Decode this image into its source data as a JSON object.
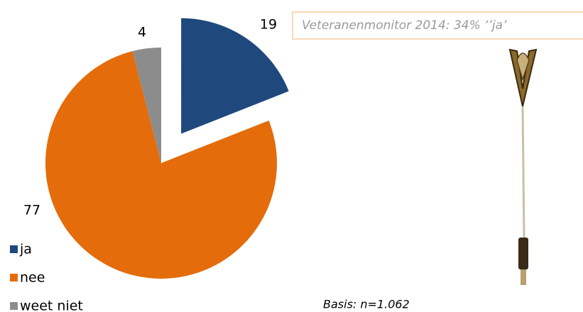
{
  "chart_data": {
    "type": "pie",
    "categories": [
      "ja",
      "nee",
      "weet niet"
    ],
    "values": [
      19,
      77,
      4
    ],
    "colors": [
      "#1f497d",
      "#e46c0a",
      "#8c8c8c"
    ],
    "exploded": [
      true,
      false,
      false
    ],
    "legend": "bottom-left",
    "annotations": [
      "Veteranenmonitor 2014: 34% ‘’ja’",
      "Basis: n=1.062"
    ]
  }
}
